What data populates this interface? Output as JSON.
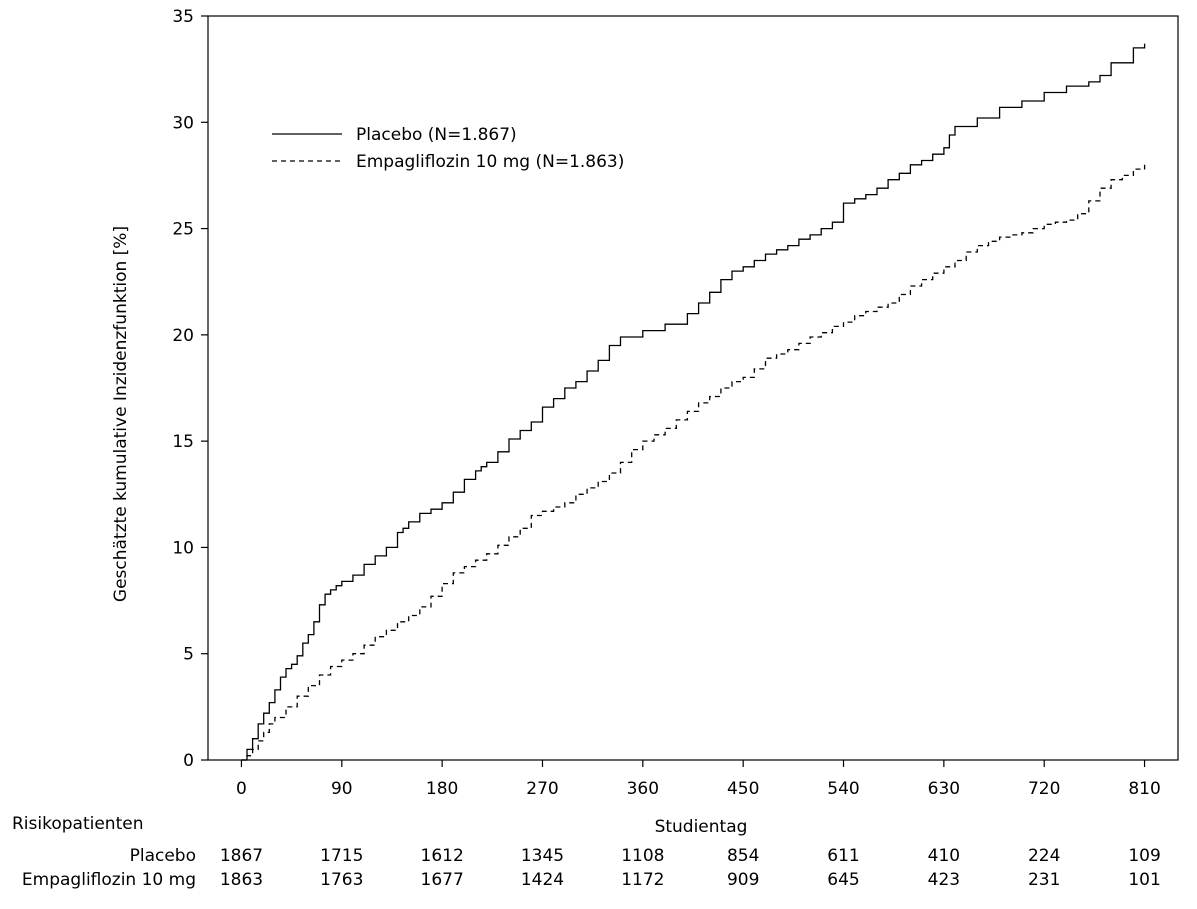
{
  "chart_data": {
    "type": "line",
    "title": "",
    "xlabel": "Studientag",
    "ylabel": "Geschätzte kumulative Inzidenzfunktion [%]",
    "xlim": [
      -30,
      840
    ],
    "ylim": [
      0,
      35
    ],
    "x_ticks": [
      0,
      90,
      180,
      270,
      360,
      450,
      540,
      630,
      720,
      810
    ],
    "y_ticks": [
      0,
      5,
      10,
      15,
      20,
      25,
      30,
      35
    ],
    "grid": false,
    "legend_position": "top-left",
    "series": [
      {
        "name": "Placebo (N=1.867)",
        "line_style": "solid",
        "color": "#000000",
        "x": [
          0,
          5,
          10,
          15,
          20,
          25,
          30,
          35,
          40,
          45,
          50,
          55,
          60,
          65,
          70,
          75,
          80,
          85,
          90,
          100,
          110,
          120,
          130,
          140,
          145,
          150,
          160,
          170,
          180,
          190,
          200,
          210,
          215,
          220,
          230,
          240,
          250,
          260,
          270,
          280,
          290,
          300,
          310,
          320,
          330,
          340,
          360,
          380,
          400,
          410,
          420,
          430,
          440,
          450,
          460,
          470,
          480,
          490,
          500,
          510,
          520,
          530,
          540,
          550,
          560,
          570,
          580,
          590,
          600,
          610,
          620,
          630,
          635,
          640,
          660,
          680,
          700,
          720,
          740,
          760,
          770,
          780,
          800,
          810
        ],
        "y": [
          0,
          0.5,
          1.0,
          1.7,
          2.2,
          2.7,
          3.3,
          3.9,
          4.3,
          4.5,
          4.9,
          5.5,
          5.9,
          6.5,
          7.3,
          7.8,
          8.0,
          8.2,
          8.4,
          8.7,
          9.2,
          9.6,
          10.0,
          10.7,
          10.9,
          11.2,
          11.6,
          11.8,
          12.1,
          12.6,
          13.2,
          13.6,
          13.8,
          14.0,
          14.5,
          15.1,
          15.5,
          15.9,
          16.6,
          17.0,
          17.5,
          17.8,
          18.3,
          18.8,
          19.5,
          19.9,
          20.2,
          20.5,
          21.0,
          21.5,
          22.0,
          22.6,
          23.0,
          23.2,
          23.5,
          23.8,
          24.0,
          24.2,
          24.5,
          24.7,
          25.0,
          25.3,
          26.2,
          26.4,
          26.6,
          26.9,
          27.3,
          27.6,
          28.0,
          28.2,
          28.5,
          28.8,
          29.4,
          29.8,
          30.2,
          30.7,
          31.0,
          31.4,
          31.7,
          31.9,
          32.2,
          32.8,
          33.5,
          33.7
        ]
      },
      {
        "name": "Empagliflozin 10 mg (N=1.863)",
        "line_style": "dashed",
        "color": "#000000",
        "x": [
          0,
          5,
          10,
          15,
          20,
          25,
          30,
          40,
          50,
          60,
          70,
          80,
          90,
          100,
          110,
          120,
          130,
          140,
          150,
          160,
          170,
          180,
          190,
          200,
          210,
          220,
          230,
          240,
          250,
          260,
          270,
          280,
          290,
          300,
          310,
          320,
          330,
          340,
          350,
          360,
          370,
          380,
          390,
          400,
          410,
          420,
          430,
          440,
          450,
          460,
          470,
          480,
          490,
          500,
          510,
          520,
          530,
          540,
          550,
          560,
          570,
          580,
          590,
          600,
          610,
          620,
          630,
          640,
          650,
          660,
          670,
          680,
          690,
          700,
          710,
          720,
          730,
          740,
          750,
          760,
          770,
          780,
          790,
          800,
          810
        ],
        "y": [
          0,
          0.2,
          0.5,
          0.9,
          1.3,
          1.7,
          2.0,
          2.5,
          3.0,
          3.5,
          4.0,
          4.4,
          4.7,
          5.0,
          5.4,
          5.8,
          6.1,
          6.5,
          6.8,
          7.2,
          7.7,
          8.3,
          8.8,
          9.1,
          9.4,
          9.7,
          10.1,
          10.5,
          10.9,
          11.5,
          11.7,
          11.9,
          12.1,
          12.5,
          12.8,
          13.1,
          13.5,
          14.0,
          14.6,
          15.0,
          15.3,
          15.6,
          16.0,
          16.4,
          16.8,
          17.1,
          17.5,
          17.8,
          18.0,
          18.4,
          18.9,
          19.1,
          19.3,
          19.6,
          19.9,
          20.1,
          20.4,
          20.6,
          20.9,
          21.1,
          21.3,
          21.5,
          21.9,
          22.3,
          22.6,
          22.9,
          23.2,
          23.5,
          23.9,
          24.2,
          24.4,
          24.6,
          24.7,
          24.8,
          25.0,
          25.2,
          25.3,
          25.4,
          25.7,
          26.3,
          26.9,
          27.3,
          27.5,
          27.8,
          28.0
        ]
      }
    ],
    "risk_table": {
      "title": "Risikopatienten",
      "x": [
        0,
        90,
        180,
        270,
        360,
        450,
        540,
        630,
        720,
        810
      ],
      "rows": [
        {
          "label": "Placebo",
          "values": [
            "1867",
            "1715",
            "1612",
            "1345",
            "1108",
            "854",
            "611",
            "410",
            "224",
            "109"
          ]
        },
        {
          "label": "Empagliflozin 10 mg",
          "values": [
            "1863",
            "1763",
            "1677",
            "1424",
            "1172",
            "909",
            "645",
            "423",
            "231",
            "101"
          ]
        }
      ]
    }
  }
}
